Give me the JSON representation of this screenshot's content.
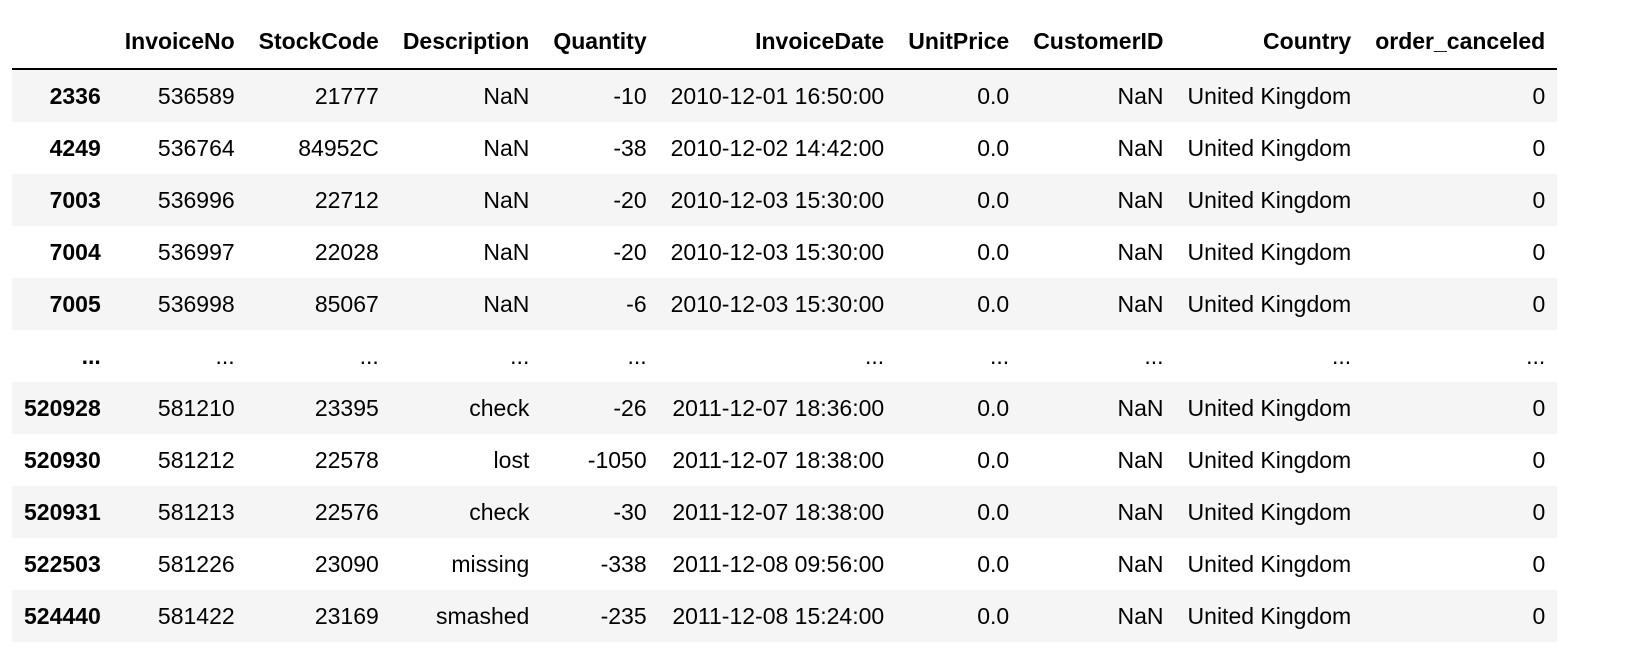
{
  "table": {
    "columns": [
      "",
      "InvoiceNo",
      "StockCode",
      "Description",
      "Quantity",
      "InvoiceDate",
      "UnitPrice",
      "CustomerID",
      "Country",
      "order_canceled"
    ],
    "rows": [
      [
        "2336",
        "536589",
        "21777",
        "NaN",
        "-10",
        "2010-12-01 16:50:00",
        "0.0",
        "NaN",
        "United Kingdom",
        "0"
      ],
      [
        "4249",
        "536764",
        "84952C",
        "NaN",
        "-38",
        "2010-12-02 14:42:00",
        "0.0",
        "NaN",
        "United Kingdom",
        "0"
      ],
      [
        "7003",
        "536996",
        "22712",
        "NaN",
        "-20",
        "2010-12-03 15:30:00",
        "0.0",
        "NaN",
        "United Kingdom",
        "0"
      ],
      [
        "7004",
        "536997",
        "22028",
        "NaN",
        "-20",
        "2010-12-03 15:30:00",
        "0.0",
        "NaN",
        "United Kingdom",
        "0"
      ],
      [
        "7005",
        "536998",
        "85067",
        "NaN",
        "-6",
        "2010-12-03 15:30:00",
        "0.0",
        "NaN",
        "United Kingdom",
        "0"
      ],
      [
        "...",
        "...",
        "...",
        "...",
        "...",
        "...",
        "...",
        "...",
        "...",
        "..."
      ],
      [
        "520928",
        "581210",
        "23395",
        "check",
        "-26",
        "2011-12-07 18:36:00",
        "0.0",
        "NaN",
        "United Kingdom",
        "0"
      ],
      [
        "520930",
        "581212",
        "22578",
        "lost",
        "-1050",
        "2011-12-07 18:38:00",
        "0.0",
        "NaN",
        "United Kingdom",
        "0"
      ],
      [
        "520931",
        "581213",
        "22576",
        "check",
        "-30",
        "2011-12-07 18:38:00",
        "0.0",
        "NaN",
        "United Kingdom",
        "0"
      ],
      [
        "522503",
        "581226",
        "23090",
        "missing",
        "-338",
        "2011-12-08 09:56:00",
        "0.0",
        "NaN",
        "United Kingdom",
        "0"
      ],
      [
        "524440",
        "581422",
        "23169",
        "smashed",
        "-235",
        "2011-12-08 15:24:00",
        "0.0",
        "NaN",
        "United Kingdom",
        "0"
      ]
    ]
  }
}
